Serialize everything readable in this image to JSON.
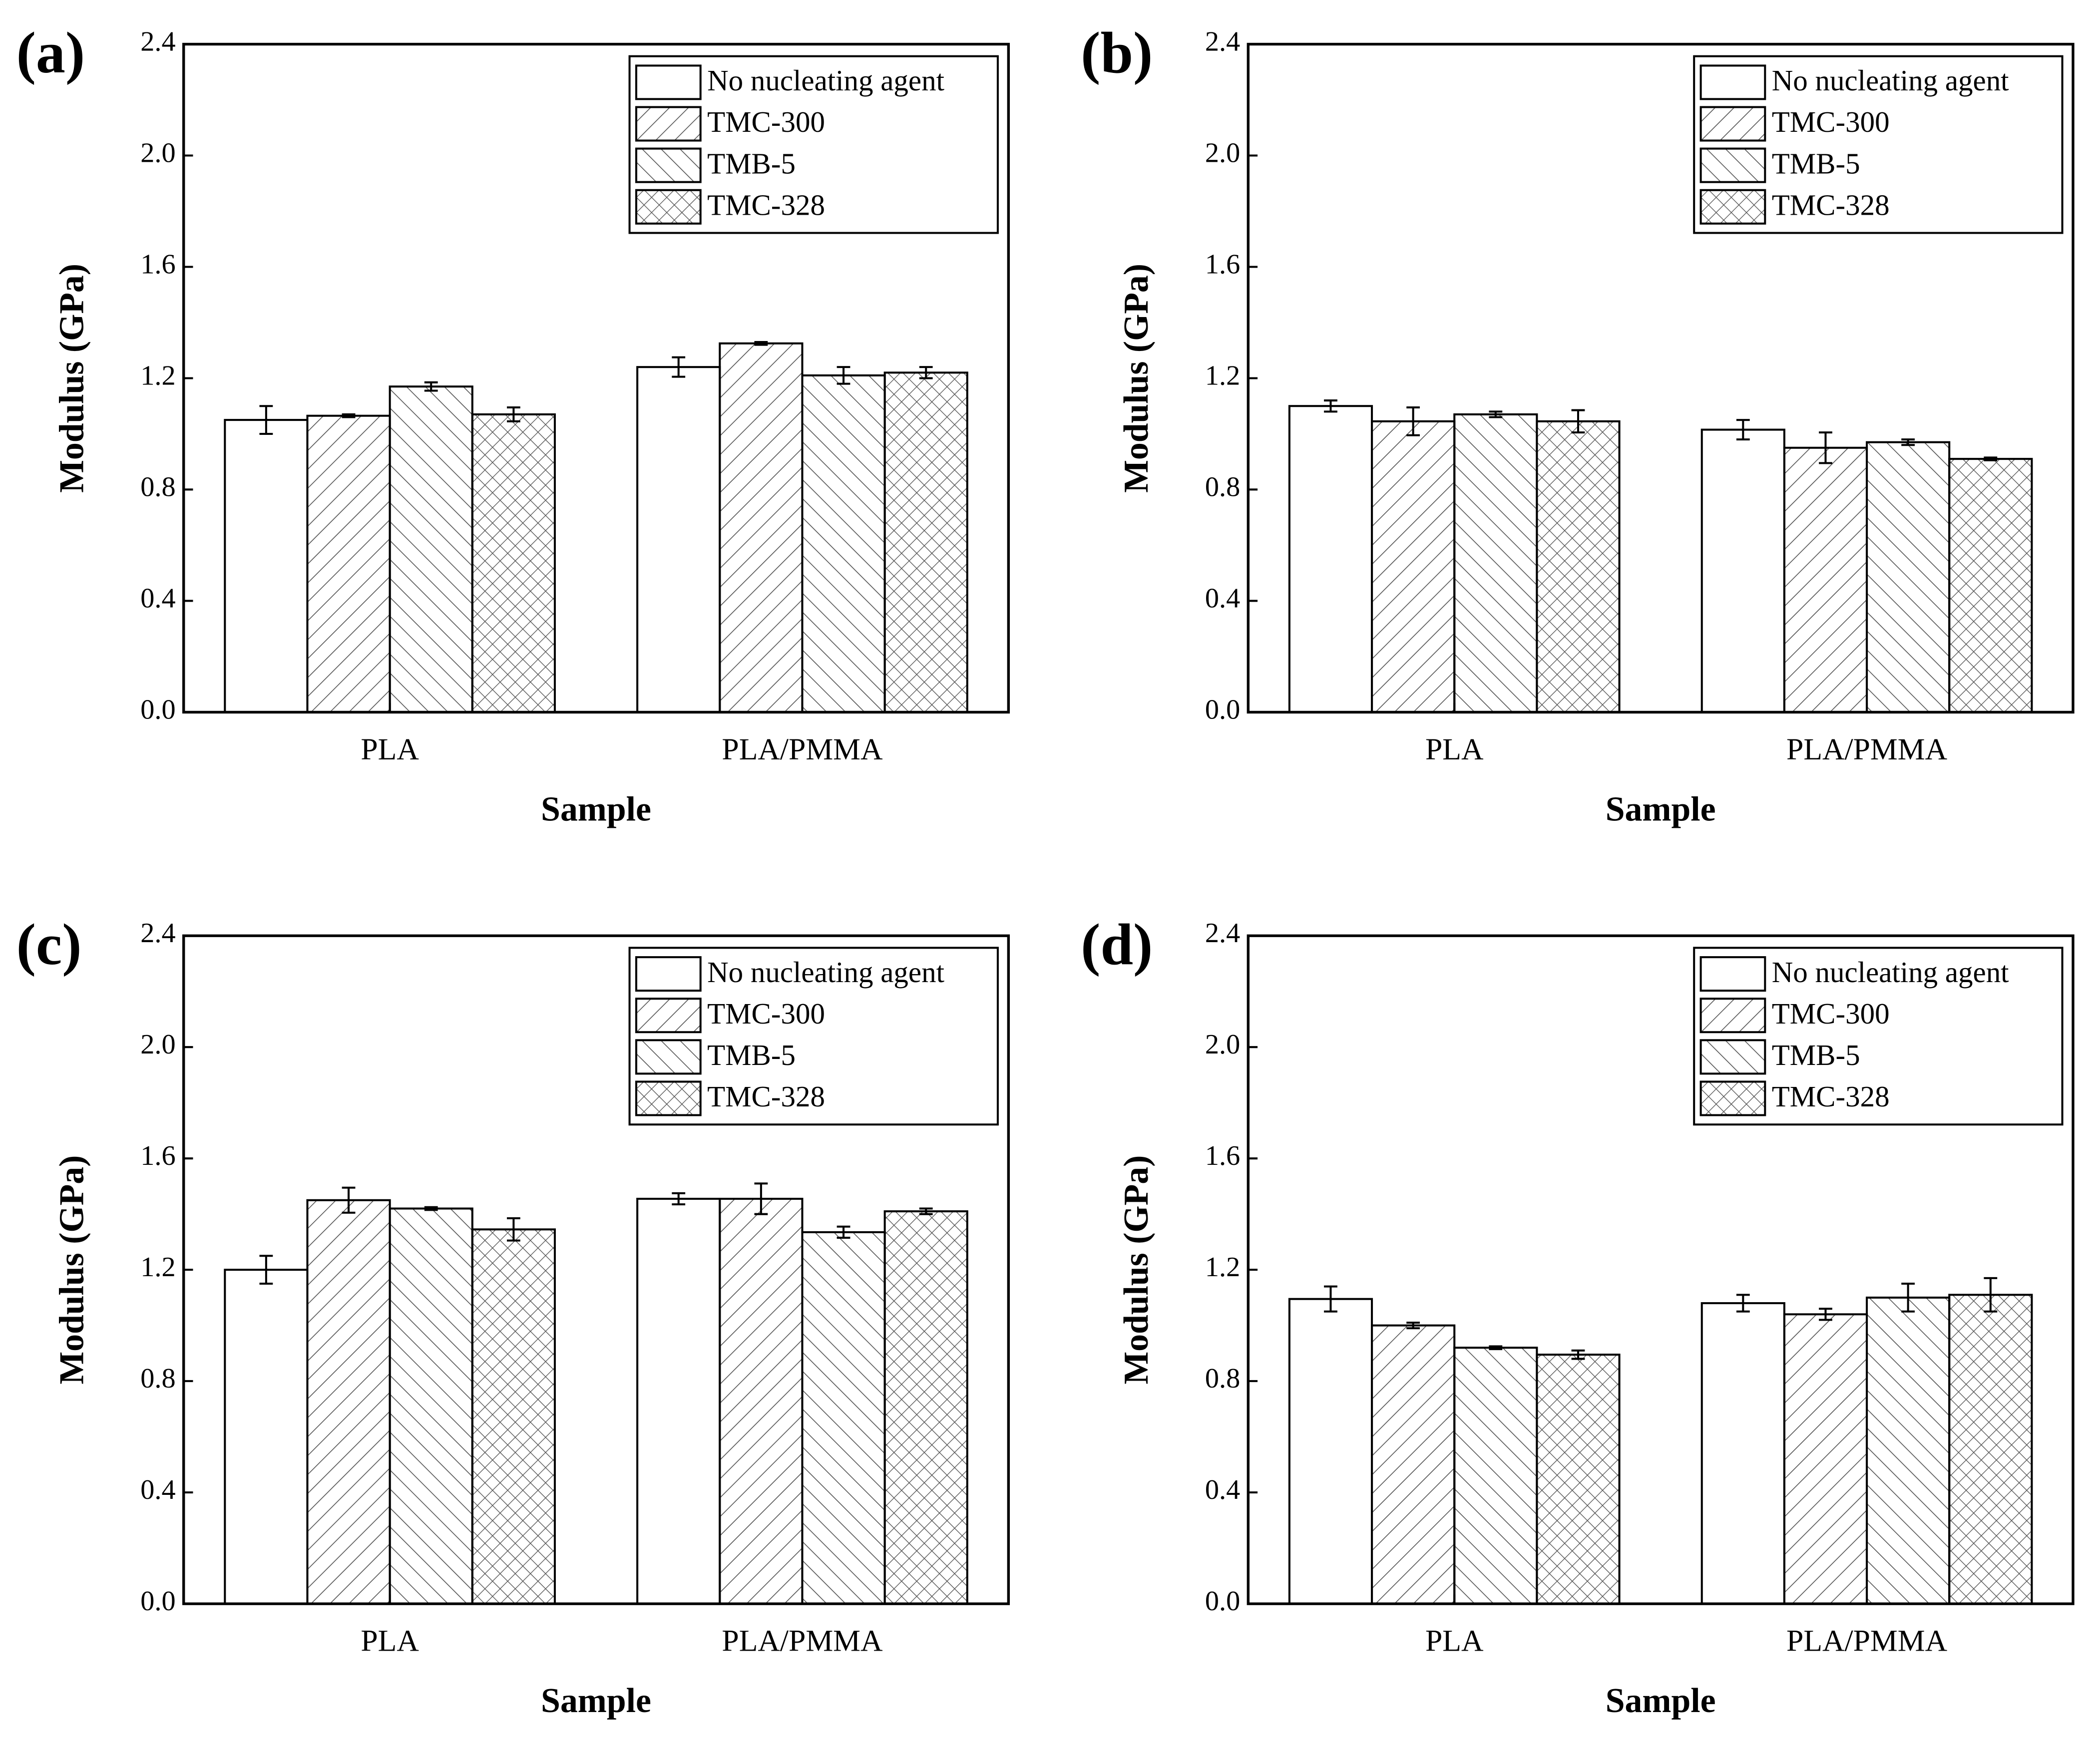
{
  "chart_data": [
    {
      "type": "bar",
      "label": "(a)",
      "x_label": "Sample",
      "y_label": "Modulus (GPa)",
      "categories": [
        "PLA",
        "PLA/PMMA"
      ],
      "series": [
        {
          "name": "No nucleating agent",
          "color": "#ffffff",
          "pattern": "none",
          "values": [
            1.05,
            1.24
          ],
          "errors": [
            0.05,
            0.035
          ]
        },
        {
          "name": "TMC-300",
          "color": "#ffffff",
          "pattern": "diagonal",
          "values": [
            1.065,
            1.325
          ],
          "errors": [
            0.005,
            0.005
          ]
        },
        {
          "name": "TMB-5",
          "color": "#ffffff",
          "pattern": "back-diagonal",
          "values": [
            1.17,
            1.21
          ],
          "errors": [
            0.015,
            0.03
          ]
        },
        {
          "name": "TMC-328",
          "color": "#ffffff",
          "pattern": "cross",
          "values": [
            1.07,
            1.22
          ],
          "errors": [
            0.025,
            0.02
          ]
        }
      ],
      "ylim": [
        0,
        2.4
      ],
      "yticks": [
        {
          "value": 0,
          "label": "0.0"
        },
        0.4,
        0.8,
        1.2,
        1.6,
        {
          "value": 2,
          "label": "2.0"
        },
        2.4
      ],
      "legend": "top-right"
    },
    {
      "type": "bar",
      "label": "(b)",
      "x_label": "Sample",
      "y_label": "Modulus (GPa)",
      "categories": [
        "PLA",
        "PLA/PMMA"
      ],
      "series": [
        {
          "name": "No nucleating agent",
          "color": "#ffffff",
          "pattern": "none",
          "values": [
            1.1,
            1.015
          ],
          "errors": [
            0.02,
            0.035
          ]
        },
        {
          "name": "TMC-300",
          "color": "#ffffff",
          "pattern": "diagonal",
          "values": [
            1.045,
            0.95
          ],
          "errors": [
            0.05,
            0.055
          ]
        },
        {
          "name": "TMB-5",
          "color": "#ffffff",
          "pattern": "back-diagonal",
          "values": [
            1.07,
            0.97
          ],
          "errors": [
            0.01,
            0.01
          ]
        },
        {
          "name": "TMC-328",
          "color": "#ffffff",
          "pattern": "cross",
          "values": [
            1.045,
            0.91
          ],
          "errors": [
            0.04,
            0.005
          ]
        }
      ],
      "ylim": [
        0,
        2.4
      ],
      "yticks": [
        {
          "value": 0,
          "label": "0.0"
        },
        0.4,
        0.8,
        1.2,
        1.6,
        {
          "value": 2,
          "label": "2.0"
        },
        2.4
      ],
      "legend": "top-right"
    },
    {
      "type": "bar",
      "label": "(c)",
      "x_label": "Sample",
      "y_label": "Modulus (GPa)",
      "categories": [
        "PLA",
        "PLA/PMMA"
      ],
      "series": [
        {
          "name": "No nucleating agent",
          "color": "#ffffff",
          "pattern": "none",
          "values": [
            1.2,
            1.455
          ],
          "errors": [
            0.05,
            0.02
          ]
        },
        {
          "name": "TMC-300",
          "color": "#ffffff",
          "pattern": "diagonal",
          "values": [
            1.45,
            1.455
          ],
          "errors": [
            0.045,
            0.055
          ]
        },
        {
          "name": "TMB-5",
          "color": "#ffffff",
          "pattern": "back-diagonal",
          "values": [
            1.42,
            1.335
          ],
          "errors": [
            0.005,
            0.02
          ]
        },
        {
          "name": "TMC-328",
          "color": "#ffffff",
          "pattern": "cross",
          "values": [
            1.345,
            1.41
          ],
          "errors": [
            0.04,
            0.01
          ]
        }
      ],
      "ylim": [
        0,
        2.4
      ],
      "yticks": [
        {
          "value": 0,
          "label": "0.0"
        },
        0.4,
        0.8,
        1.2,
        1.6,
        {
          "value": 2,
          "label": "2.0"
        },
        2.4
      ],
      "legend": "top-right"
    },
    {
      "type": "bar",
      "label": "(d)",
      "x_label": "Sample",
      "y_label": "Modulus (GPa)",
      "categories": [
        "PLA",
        "PLA/PMMA"
      ],
      "series": [
        {
          "name": "No nucleating agent",
          "color": "#ffffff",
          "pattern": "none",
          "values": [
            1.095,
            1.08
          ],
          "errors": [
            0.045,
            0.03
          ]
        },
        {
          "name": "TMC-300",
          "color": "#ffffff",
          "pattern": "diagonal",
          "values": [
            1.0,
            1.04
          ],
          "errors": [
            0.01,
            0.02
          ]
        },
        {
          "name": "TMB-5",
          "color": "#ffffff",
          "pattern": "back-diagonal",
          "values": [
            0.92,
            1.1
          ],
          "errors": [
            0.005,
            0.05
          ]
        },
        {
          "name": "TMC-328",
          "color": "#ffffff",
          "pattern": "cross",
          "values": [
            0.895,
            1.11
          ],
          "errors": [
            0.015,
            0.06
          ]
        }
      ],
      "ylim": [
        0,
        2.4
      ],
      "yticks": [
        {
          "value": 0,
          "label": "0.0"
        },
        0.4,
        0.8,
        1.2,
        1.6,
        {
          "value": 2,
          "label": "2.0"
        },
        2.4
      ],
      "legend": "top-right"
    }
  ]
}
